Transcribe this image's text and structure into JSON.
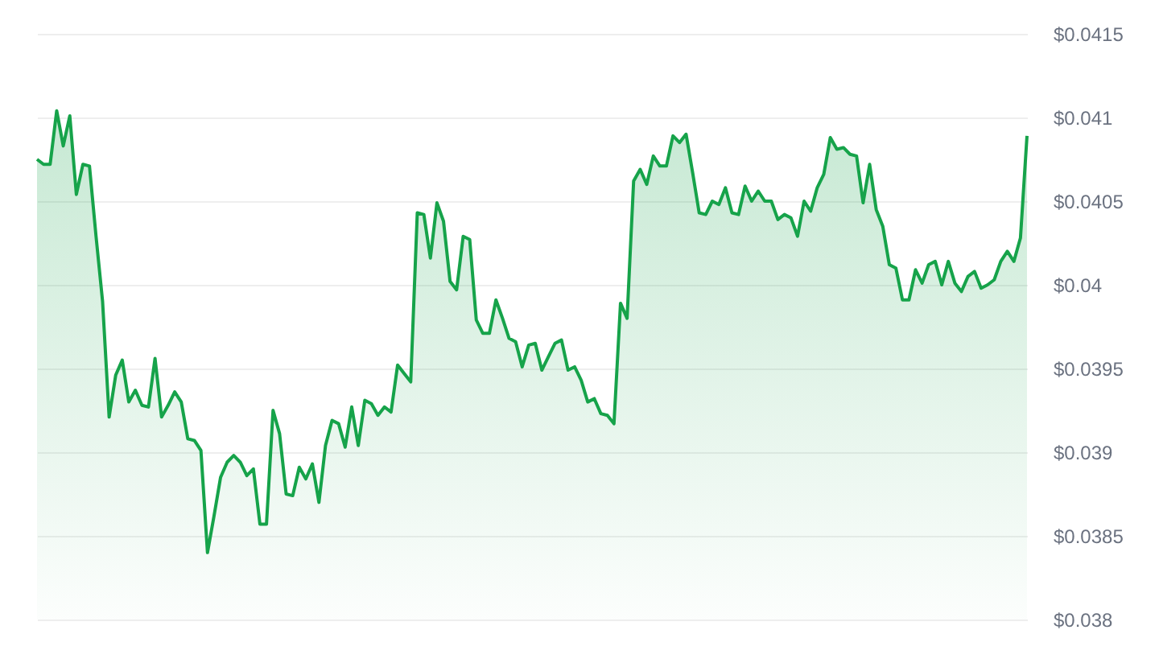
{
  "chart_data": {
    "type": "area",
    "categories": [
      null,
      null,
      null,
      null,
      null,
      null,
      null,
      null,
      null,
      null,
      null,
      null,
      null,
      null,
      null,
      null,
      null,
      null,
      null,
      null,
      null,
      null,
      null,
      null,
      null,
      null,
      null,
      null,
      null,
      null,
      null,
      null,
      null,
      null,
      null,
      null,
      null,
      null,
      null,
      null,
      null,
      null,
      null,
      null,
      null,
      null,
      null,
      null,
      null,
      null,
      null,
      null,
      null,
      null,
      null,
      null,
      null,
      null,
      null,
      null,
      null,
      null,
      null,
      null,
      null,
      null,
      null,
      null,
      null,
      null,
      null,
      null,
      null,
      null,
      null,
      null,
      null,
      null,
      null,
      null,
      null,
      null,
      null,
      null,
      null,
      null,
      null,
      null,
      null,
      null,
      null,
      null,
      null,
      null,
      null,
      null,
      null,
      null,
      null,
      null,
      null,
      null,
      null,
      null,
      null,
      null,
      null,
      null,
      null,
      null,
      null,
      null,
      null,
      null,
      null,
      null,
      null,
      null,
      null,
      null,
      null,
      null,
      null,
      null,
      null,
      null,
      null,
      null,
      null,
      null,
      null,
      null,
      null,
      null,
      null,
      null,
      null,
      null,
      null,
      null,
      null,
      null,
      null,
      null,
      null,
      null,
      null,
      null,
      null,
      null,
      null,
      null
    ],
    "series": [
      {
        "color": "#16a34a",
        "values": [
          0.04075,
          0.04072,
          0.04072,
          0.04104,
          0.04083,
          0.04101,
          0.04054,
          0.04072,
          0.04071,
          0.04029,
          0.0399,
          0.03921,
          0.03946,
          0.03955,
          0.0393,
          0.03937,
          0.03928,
          0.03927,
          0.03956,
          0.03921,
          0.03928,
          0.03936,
          0.0393,
          0.03908,
          0.03907,
          0.03901,
          0.0384,
          0.03862,
          0.03885,
          0.03894,
          0.03898,
          0.03894,
          0.03886,
          0.0389,
          0.03857,
          0.03857,
          0.03925,
          0.03911,
          0.03875,
          0.03874,
          0.03891,
          0.03884,
          0.03893,
          0.0387,
          0.03904,
          0.03919,
          0.03917,
          0.03903,
          0.03927,
          0.03904,
          0.03931,
          0.03929,
          0.03922,
          0.03927,
          0.03924,
          0.03952,
          0.03947,
          0.03942,
          0.04043,
          0.04042,
          0.04016,
          0.04049,
          0.04038,
          0.04002,
          0.03997,
          0.04029,
          0.04027,
          0.03979,
          0.03971,
          0.03971,
          0.03991,
          0.0398,
          0.03968,
          0.03966,
          0.03951,
          0.03964,
          0.03965,
          0.03949,
          0.03957,
          0.03965,
          0.03967,
          0.03949,
          0.03951,
          0.03943,
          0.0393,
          0.03932,
          0.03923,
          0.03922,
          0.03917,
          0.03989,
          0.0398,
          0.04062,
          0.04069,
          0.0406,
          0.04077,
          0.04071,
          0.04071,
          0.04089,
          0.04085,
          0.0409,
          0.04067,
          0.04043,
          0.04042,
          0.0405,
          0.04048,
          0.04058,
          0.04043,
          0.04042,
          0.04059,
          0.0405,
          0.04056,
          0.0405,
          0.0405,
          0.04039,
          0.04042,
          0.0404,
          0.04029,
          0.0405,
          0.04044,
          0.04058,
          0.04066,
          0.04088,
          0.04081,
          0.04082,
          0.04078,
          0.04077,
          0.04049,
          0.04072,
          0.04045,
          0.04035,
          0.04012,
          0.0401,
          0.03991,
          0.03991,
          0.04009,
          0.04001,
          0.04012,
          0.04014,
          0.04,
          0.04014,
          0.04001,
          0.03996,
          0.04005,
          0.04008,
          0.03998,
          0.04,
          0.04003,
          0.04014,
          0.0402,
          0.04014,
          0.04028,
          0.04089
        ]
      }
    ],
    "ylim": [
      0.038,
      0.0415
    ],
    "yticks": [
      {
        "value": 0.038,
        "label": "$0.038"
      },
      {
        "value": 0.0385,
        "label": "$0.0385"
      },
      {
        "value": 0.039,
        "label": "$0.039"
      },
      {
        "value": 0.0395,
        "label": "$0.0395"
      },
      {
        "value": 0.04,
        "label": "$0.04"
      },
      {
        "value": 0.0405,
        "label": "$0.0405"
      },
      {
        "value": 0.041,
        "label": "$0.041"
      },
      {
        "value": 0.0415,
        "label": "$0.0415"
      }
    ],
    "grid": "y",
    "tick_labels": "y"
  }
}
